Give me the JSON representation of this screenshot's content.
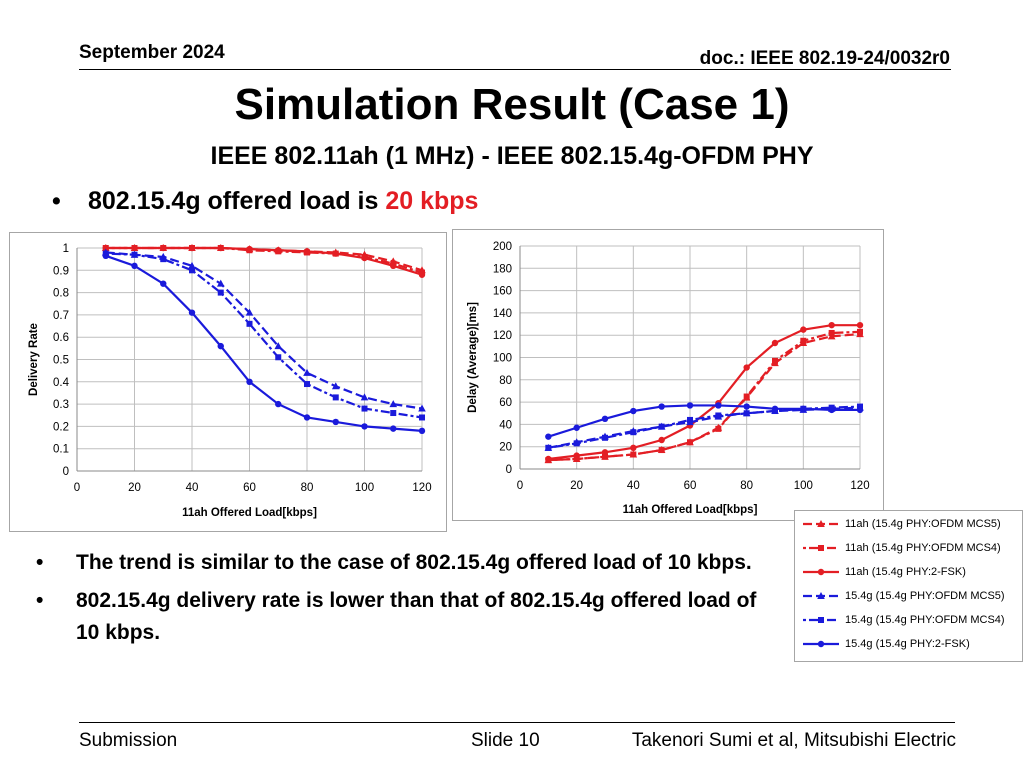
{
  "header": {
    "date": "September 2024",
    "doc": "doc.: IEEE 802.19-24/0032r0"
  },
  "title": "Simulation Result (Case 1)",
  "subtitle": "IEEE 802.11ah (1 MHz) -  IEEE 802.15.4g-OFDM PHY",
  "bullet_main": {
    "bullet": "•",
    "prefix": "802.15.4g offered load is ",
    "highlight": "20 kbps",
    "highlight_color": "#e31e24"
  },
  "notes": [
    {
      "bullet": "•",
      "text": "The trend is similar to the case of 802.15.4g offered load of 10 kbps."
    },
    {
      "bullet": "•",
      "text": "802.15.4g delivery rate is lower than that of 802.15.4g offered load of 10 kbps."
    }
  ],
  "footer": {
    "left": "Submission",
    "middle": "Slide 10",
    "right": "Takenori Sumi et al, Mitsubishi Electric"
  },
  "colors": {
    "red": "#e31e24",
    "blue": "#1a1adb",
    "grid": "#bfbfbf",
    "axis": "#888888"
  },
  "chart_data": [
    {
      "type": "line",
      "title": "",
      "xlabel": "11ah Offered Load[kbps]",
      "ylabel": "Delivery Rate",
      "xlim": [
        0,
        120
      ],
      "ylim": [
        0,
        1
      ],
      "xticks": [
        0,
        20,
        40,
        60,
        80,
        100,
        120
      ],
      "yticks": [
        0,
        0.1,
        0.2,
        0.3,
        0.4,
        0.5,
        0.6,
        0.7,
        0.8,
        0.9,
        1
      ],
      "ytick_labels": [
        "0",
        "0.1",
        "0.2",
        "0.3",
        "0.4",
        "0.5",
        "0.6",
        "0.7",
        "0.8",
        "0.9",
        "1"
      ],
      "grid": true,
      "x": [
        10,
        20,
        30,
        40,
        50,
        60,
        70,
        80,
        90,
        100,
        110,
        120
      ],
      "series": [
        {
          "name": "11ah (15.4g PHY:OFDM MCS5)",
          "values": [
            1.0,
            1.0,
            1.0,
            1.0,
            1.0,
            0.995,
            0.99,
            0.985,
            0.98,
            0.97,
            0.94,
            0.9
          ]
        },
        {
          "name": "11ah (15.4g PHY:OFDM MCS4)",
          "values": [
            1.0,
            1.0,
            1.0,
            1.0,
            1.0,
            0.99,
            0.985,
            0.98,
            0.975,
            0.96,
            0.93,
            0.89
          ]
        },
        {
          "name": "11ah (15.4g PHY:2-FSK)",
          "values": [
            1.0,
            1.0,
            1.0,
            1.0,
            1.0,
            0.995,
            0.99,
            0.985,
            0.975,
            0.955,
            0.92,
            0.88
          ]
        },
        {
          "name": "15.4g (15.4g PHY:OFDM MCS5)",
          "values": [
            0.98,
            0.97,
            0.96,
            0.92,
            0.84,
            0.71,
            0.56,
            0.44,
            0.38,
            0.33,
            0.3,
            0.28
          ]
        },
        {
          "name": "15.4g (15.4g PHY:OFDM MCS4)",
          "values": [
            0.975,
            0.97,
            0.95,
            0.9,
            0.8,
            0.66,
            0.51,
            0.39,
            0.33,
            0.28,
            0.26,
            0.24
          ]
        },
        {
          "name": "15.4g (15.4g PHY:2-FSK)",
          "values": [
            0.965,
            0.92,
            0.84,
            0.71,
            0.56,
            0.4,
            0.3,
            0.24,
            0.22,
            0.2,
            0.19,
            0.18
          ]
        }
      ]
    },
    {
      "type": "line",
      "title": "",
      "xlabel": "11ah Offered Load[kbps]",
      "ylabel": "Delay (Average)[ms]",
      "xlim": [
        0,
        120
      ],
      "ylim": [
        0,
        200
      ],
      "xticks": [
        0,
        20,
        40,
        60,
        80,
        100,
        120
      ],
      "yticks": [
        0,
        20,
        40,
        60,
        80,
        100,
        120,
        140,
        160,
        180,
        200
      ],
      "ytick_labels": [
        "0",
        "20",
        "40",
        "60",
        "80",
        "100",
        "120",
        "140",
        "160",
        "180",
        "200"
      ],
      "grid": true,
      "x": [
        10,
        20,
        30,
        40,
        50,
        60,
        70,
        80,
        90,
        100,
        110,
        120
      ],
      "series": [
        {
          "name": "11ah (15.4g PHY:OFDM MCS5)",
          "values": [
            8,
            9,
            11,
            13,
            17,
            24,
            37,
            64,
            95,
            113,
            119,
            121
          ]
        },
        {
          "name": "11ah (15.4g PHY:OFDM MCS4)",
          "values": [
            8,
            9,
            11,
            13,
            17,
            24,
            36,
            65,
            97,
            115,
            122,
            123
          ]
        },
        {
          "name": "11ah (15.4g PHY:2-FSK)",
          "values": [
            9,
            12,
            15,
            19,
            26,
            39,
            59,
            91,
            113,
            125,
            129,
            129
          ]
        },
        {
          "name": "15.4g (15.4g PHY:OFDM MCS5)",
          "values": [
            19,
            24,
            29,
            34,
            38,
            42,
            47,
            50,
            52,
            53,
            54,
            55
          ]
        },
        {
          "name": "15.4g (15.4g PHY:OFDM MCS4)",
          "values": [
            19,
            23,
            28,
            33,
            38,
            44,
            48,
            50,
            52,
            54,
            55,
            56
          ]
        },
        {
          "name": "15.4g (15.4g PHY:2-FSK)",
          "values": [
            29,
            37,
            45,
            52,
            56,
            57,
            57,
            56,
            54,
            54,
            53,
            53
          ]
        }
      ]
    }
  ],
  "series_style": [
    {
      "color": "#e31e24",
      "dash": "9,4",
      "marker": "triangle"
    },
    {
      "color": "#e31e24",
      "dash": "3,3,9,3",
      "marker": "square"
    },
    {
      "color": "#e31e24",
      "dash": "",
      "marker": "circle"
    },
    {
      "color": "#1a1adb",
      "dash": "9,4",
      "marker": "triangle"
    },
    {
      "color": "#1a1adb",
      "dash": "3,3,9,3",
      "marker": "square"
    },
    {
      "color": "#1a1adb",
      "dash": "",
      "marker": "circle"
    }
  ]
}
